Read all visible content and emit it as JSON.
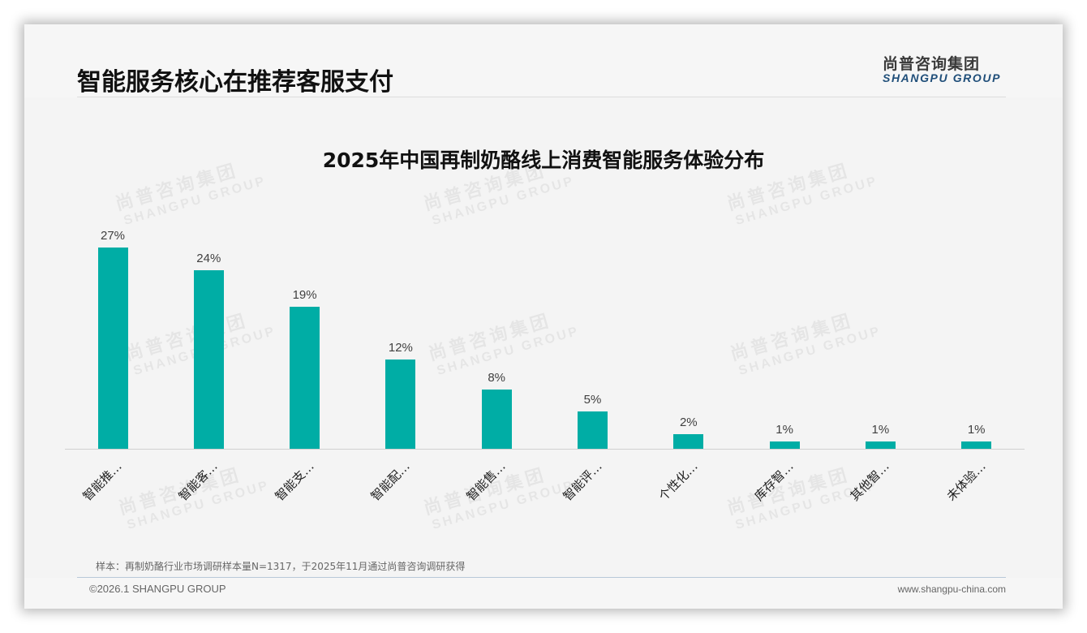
{
  "header": {
    "title": "智能服务核心在推荐客服支付",
    "logo_cn": "尚普咨询集团",
    "logo_en": "SHANGPU GROUP"
  },
  "watermark": {
    "cn": "尚普咨询集团",
    "en": "SHANGPU GROUP"
  },
  "colors": {
    "bar": "#00ada5",
    "logo_en": "#1f4e79",
    "background": "#f4f4f4"
  },
  "chart_data": {
    "type": "bar",
    "title": "2025年中国再制奶酪线上消费智能服务体验分布",
    "categories": [
      "智能推…",
      "智能客…",
      "智能支…",
      "智能配…",
      "智能售…",
      "智能评…",
      "个性化…",
      "库存智…",
      "其他智…",
      "未体验…"
    ],
    "values": [
      27,
      24,
      19,
      12,
      8,
      5,
      2,
      1,
      1,
      1
    ],
    "value_labels": [
      "27%",
      "24%",
      "19%",
      "12%",
      "8%",
      "5%",
      "2%",
      "1%",
      "1%",
      "1%"
    ],
    "unit": "%",
    "xlabel": "",
    "ylabel": "",
    "ylim": [
      0,
      27
    ],
    "grid": false,
    "legend": null,
    "y_axis_visible": false,
    "x_tick_rotation": -45
  },
  "footer": {
    "source_note": "样本：再制奶酪行业市场调研样本量N=1317，于2025年11月通过尚普咨询调研获得",
    "copyright": "©2026.1 SHANGPU GROUP",
    "website": "www.shangpu-china.com"
  }
}
